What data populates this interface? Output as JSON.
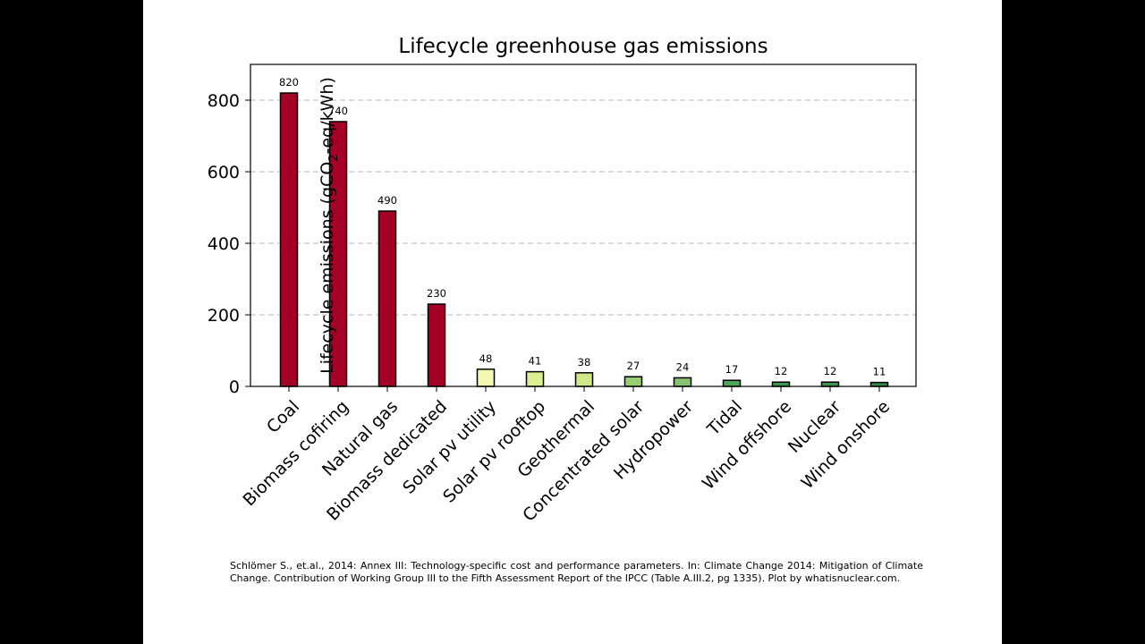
{
  "chart_data": {
    "type": "bar",
    "title": "Lifecycle greenhouse gas emissions",
    "ylabel": {
      "prefix": "Lifecycle emissions (gCO",
      "subscript": "2",
      "suffix": "-eq/kWh)"
    },
    "xlabel": "",
    "ylim": [
      0,
      900
    ],
    "yticks": [
      0,
      200,
      400,
      600,
      800
    ],
    "grid": "horizontal dashed",
    "categories": [
      "Coal",
      "Biomass cofiring",
      "Natural gas",
      "Biomass dedicated",
      "Solar pv utility",
      "Solar pv rooftop",
      "Geothermal",
      "Concentrated solar",
      "Hydropower",
      "Tidal",
      "Wind offshore",
      "Nuclear",
      "Wind onshore"
    ],
    "values": [
      820,
      740,
      490,
      230,
      48,
      41,
      38,
      27,
      24,
      17,
      12,
      12,
      11
    ],
    "bar_colors": [
      "#a50026",
      "#a50026",
      "#a50026",
      "#a50026",
      "#f4f8b0",
      "#dbee90",
      "#d0e987",
      "#98cf73",
      "#86c46f",
      "#4fa65b",
      "#3e9651",
      "#3c9650",
      "#318a4a"
    ]
  },
  "caption": "Schlömer S., et.al., 2014: Annex III: Technology-specific cost and performance parameters. In: Climate Change 2014: Mitigation of Climate Change. Contribution of Working Group III to the Fifth Assessment Report of the IPCC (Table A.III.2, pg 1335). Plot by whatisnuclear.com."
}
